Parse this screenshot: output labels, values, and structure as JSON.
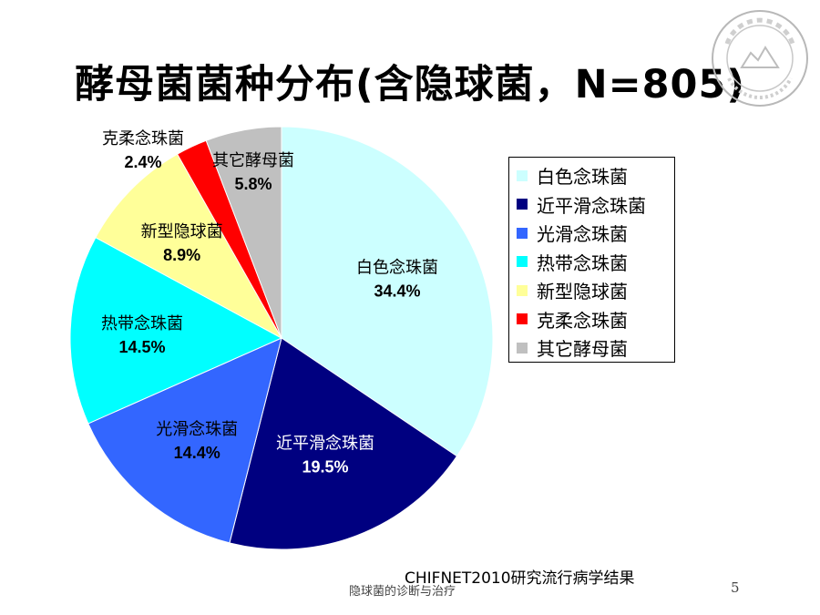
{
  "slide": {
    "title": "酵母菌菌种分布(含隐球菌，N=805)",
    "source": "CHIFNET2010研究流行病学结果",
    "footer": "隐球菌的诊断与治疗",
    "page_number": "5",
    "logo_icon": "university-seal-icon"
  },
  "chart_data": {
    "type": "pie",
    "title": "酵母菌菌种分布(含隐球菌，N=805)",
    "start_angle_deg": 0,
    "direction": "clockwise",
    "legend_position": "right",
    "slices": [
      {
        "label": "白色念珠菌",
        "value": 34.4,
        "value_label": "34.4%",
        "color": "#CCFFFF"
      },
      {
        "label": "近平滑念珠菌",
        "value": 19.5,
        "value_label": "19.5%",
        "color": "#000080"
      },
      {
        "label": "光滑念珠菌",
        "value": 14.4,
        "value_label": "14.4%",
        "color": "#3366FF"
      },
      {
        "label": "热带念珠菌",
        "value": 14.5,
        "value_label": "14.5%",
        "color": "#00FFFF"
      },
      {
        "label": "新型隐球菌",
        "value": 8.9,
        "value_label": "8.9%",
        "color": "#FFFF99"
      },
      {
        "label": "克柔念珠菌",
        "value": 2.4,
        "value_label": "2.4%",
        "color": "#FF0000"
      },
      {
        "label": "其它酵母菌",
        "value": 5.8,
        "value_label": "5.8%",
        "color": "#C0C0C0"
      }
    ],
    "legend": [
      {
        "label": "白色念珠菌",
        "color": "#CCFFFF"
      },
      {
        "label": "近平滑念珠菌",
        "color": "#000080"
      },
      {
        "label": "光滑念珠菌",
        "color": "#3366FF"
      },
      {
        "label": "热带念珠菌",
        "color": "#00FFFF"
      },
      {
        "label": "新型隐球菌",
        "color": "#FFFF99"
      },
      {
        "label": "克柔念珠菌",
        "color": "#FF0000"
      },
      {
        "label": "其它酵母菌",
        "color": "#C0C0C0"
      }
    ]
  }
}
